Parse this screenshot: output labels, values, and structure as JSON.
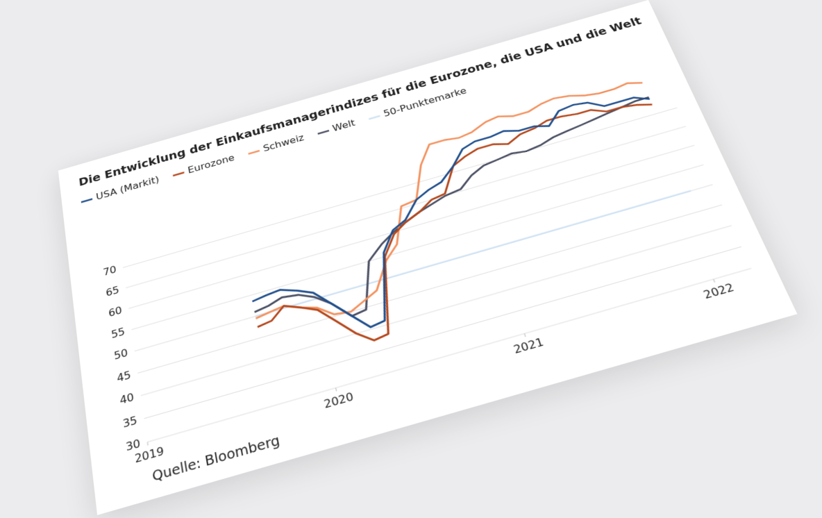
{
  "chart_data": {
    "type": "line",
    "title": "Die Entwicklung der Einkaufsmanagerindizes für die Eurozone, die USA und die Welt",
    "source": "Quelle: Bloomberg",
    "x": [
      2019.67,
      2019.75,
      2019.83,
      2019.92,
      2020,
      2020.08,
      2020.17,
      2020.25,
      2020.33,
      2020.42,
      2020.5,
      2020.58,
      2020.67,
      2020.75,
      2020.83,
      2020.92,
      2021,
      2021.08,
      2021.17,
      2021.25,
      2021.33,
      2021.42,
      2021.5,
      2021.58,
      2021.67,
      2021.75,
      2021.83,
      2021.92,
      2022,
      2022.08
    ],
    "xlim": [
      2019,
      2022.2
    ],
    "xticks": [
      2019,
      2020,
      2021,
      2022
    ],
    "ylim": [
      30,
      85
    ],
    "yticks": [
      30,
      35,
      40,
      45,
      50,
      55,
      60,
      65,
      70
    ],
    "grid": true,
    "series": [
      {
        "name": "USA (Markit)",
        "color": "#1f4e8c",
        "values": [
          53.5,
          54,
          54.3,
          53,
          51.5,
          48,
          44,
          40.5,
          41,
          56,
          60.5,
          62,
          66,
          67.5,
          68.5,
          71.5,
          75,
          76,
          76,
          76.5,
          75.5,
          75.5,
          74.5,
          77.5,
          78,
          77.5,
          75.5,
          75.5,
          75.5,
          74
        ]
      },
      {
        "name": "Eurozone",
        "color": "#b5461a",
        "values": [
          47.5,
          48,
          50.5,
          49,
          47.5,
          44,
          40,
          37.5,
          38,
          55,
          59.5,
          61.5,
          63,
          65,
          65.5,
          71.5,
          73,
          74,
          74,
          73,
          74.5,
          75,
          76,
          76,
          75.5,
          75.5,
          74,
          74,
          73.5,
          72.5
        ]
      },
      {
        "name": "Schweiz",
        "color": "#f4915e",
        "values": [
          49.5,
          50,
          50.5,
          49,
          48,
          45.5,
          45,
          46.5,
          48,
          54,
          57,
          65.5,
          66,
          74,
          78.5,
          78.5,
          78,
          78.5,
          80,
          80.5,
          79.5,
          79.5,
          80.5,
          81,
          80.5,
          79.5,
          79,
          79,
          79.5,
          78.5
        ]
      },
      {
        "name": "Welt",
        "color": "#4a4f63",
        "values": [
          51,
          51.5,
          52.5,
          52,
          50.5,
          48,
          44,
          44.5,
          55,
          58,
          60,
          61.5,
          63,
          64,
          65,
          65.5,
          68,
          69.5,
          70,
          70.5,
          70,
          70.5,
          71.5,
          72,
          72.5,
          73,
          73.5,
          74,
          74.5,
          74.5
        ]
      },
      {
        "name": "50-Punktemarke",
        "color": "#cfe2f3",
        "values": [
          50,
          50,
          50,
          50,
          50,
          50,
          50,
          50,
          50,
          50,
          50,
          50,
          50,
          50,
          50,
          50,
          50,
          50,
          50,
          50,
          50,
          50,
          50,
          50,
          50,
          50,
          50,
          50,
          50,
          50
        ]
      }
    ]
  }
}
